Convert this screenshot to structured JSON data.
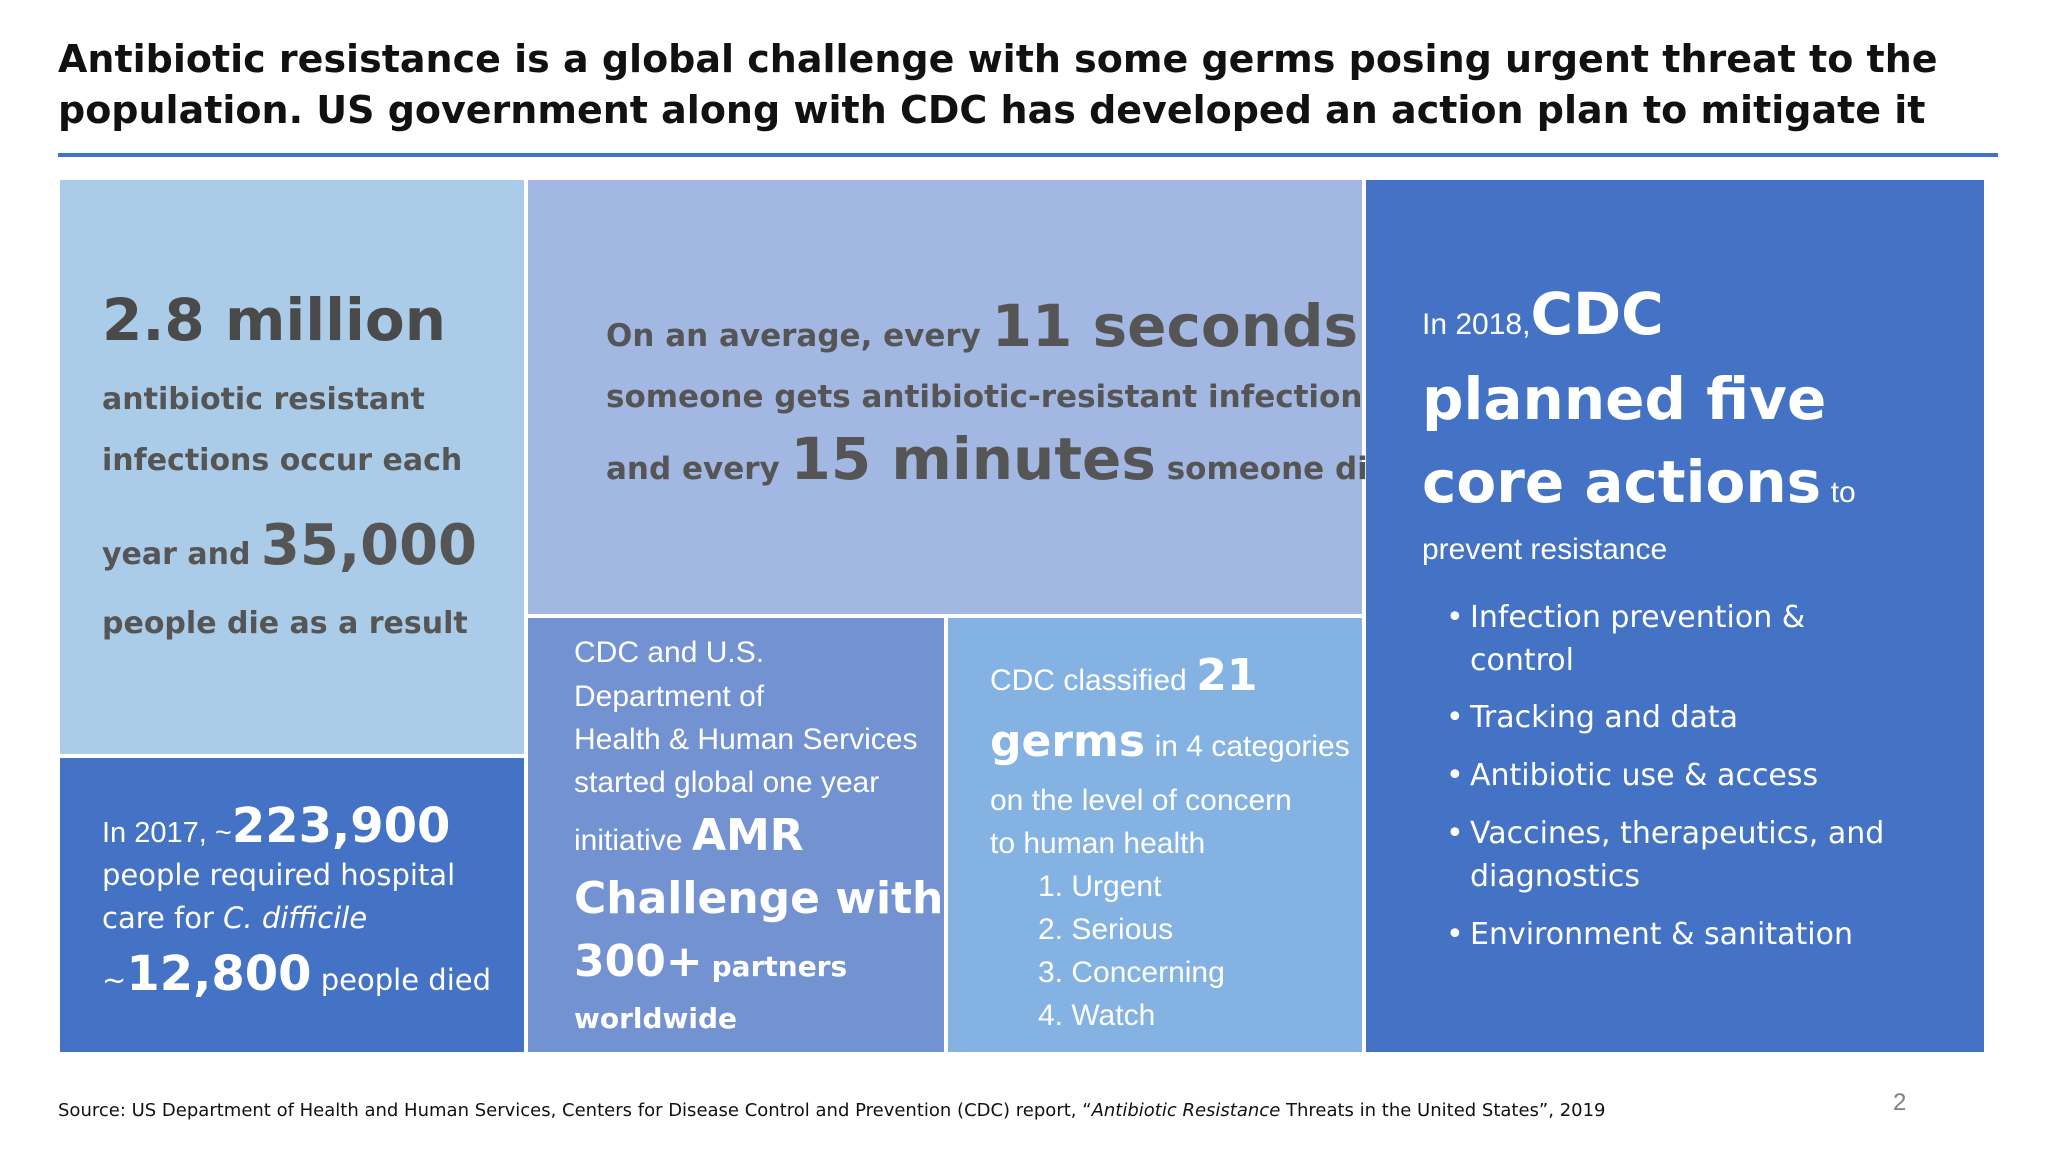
{
  "title": "Antibiotic resistance is a global challenge with some germs posing urgent threat to the population. US government along with CDC has developed an action plan to mitigate it",
  "panel_infections": {
    "big1": "2.8 million",
    "line1": "antibiotic resistant",
    "line2": "infections occur each",
    "line3_pre": "year and",
    "big2": "35,000",
    "line4": "people die as a result"
  },
  "panel_seconds": {
    "pre1": "On an average, every",
    "big1": "11 seconds",
    "line2": "someone gets antibiotic-resistant infection",
    "pre3": "and every",
    "big2": "15 minutes",
    "post3": "someone dies"
  },
  "panel_hospital": {
    "pre1": "In 2017, ~",
    "big1": "223,900",
    "line2": "people required hospital",
    "line3_pre": "care for",
    "line3_em": "C. difficile",
    "pre4": "~",
    "big2": "12,800",
    "post4": "people died"
  },
  "panel_amr": {
    "line1": "CDC and U.S.",
    "line2": "Department of",
    "line3": "Health & Human Services",
    "line4": "started global one year",
    "pre5": "initiative",
    "big1": "AMR",
    "big2": "Challenge with",
    "big3": "300+",
    "post7": "partners",
    "line8": "worldwide"
  },
  "panel_germs": {
    "pre1": "CDC classified",
    "big1": "21",
    "big2": "germs",
    "post2": "in 4 categories",
    "line3": "on the level of concern",
    "line4": "to human health",
    "categories": [
      "1. Urgent",
      "2. Serious",
      "3. Concerning",
      "4. Watch"
    ]
  },
  "panel_actions": {
    "pre1": "In 2018,",
    "big1": "CDC",
    "big2": "planned five",
    "big3": "core actions",
    "post3": "to",
    "line4": "prevent resistance",
    "bullets": [
      "Infection prevention &",
      "control",
      "Tracking and data",
      "Antibiotic use & access",
      "Vaccines, therapeutics, and",
      "diagnostics",
      "Environment & sanitation"
    ]
  },
  "source": {
    "pre": "Source: US Department of Health and Human Services, Centers for Disease Control and Prevention (CDC) report, “",
    "em": "Antibiotic Resistance",
    "post": " Threats in the United States”, 2019"
  },
  "page_number": "2",
  "colors": {
    "accent": "#4472c4",
    "panel_light_blue": "#abcce9",
    "panel_lavender": "#a2b8e3",
    "panel_mid_blue": "#7392d2",
    "panel_sky_blue": "#83b2e3"
  }
}
